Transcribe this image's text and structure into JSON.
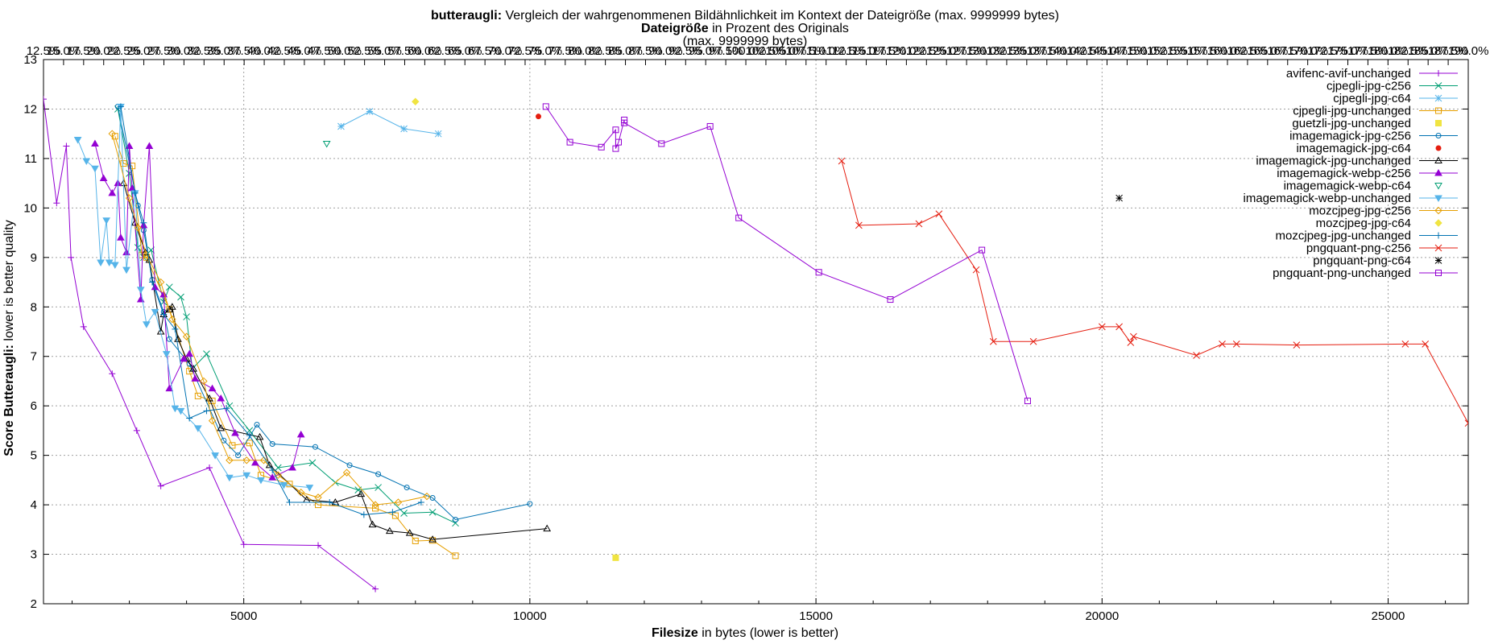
{
  "chart_data": {
    "type": "line",
    "title_bold": "butteraugli:",
    "title_rest": " Vergleich der wahrgenommenen Bildähnlichkeit im Kontext der Dateigröße (max. 9999999 bytes)",
    "subtitle_bold": "Dateigröße",
    "subtitle_rest": " in Prozent des Originals",
    "top_note": "(max. 9999999 bytes)",
    "xlabel_bold": "Filesize",
    "xlabel_rest": " in bytes (lower is better)",
    "ylabel_bold": "Score Butteraugli:",
    "ylabel_rest": " lower is better quality",
    "xlim": [
      1500,
      26400
    ],
    "ylim": [
      2,
      13
    ],
    "x_ticks": [
      "5000",
      "10000",
      "15000",
      "20000",
      "25000"
    ],
    "y_ticks": [
      "2",
      "3",
      "4",
      "5",
      "6",
      "7",
      "8",
      "9",
      "10",
      "11",
      "12",
      "13"
    ],
    "x2_ticks": [
      "12.5%",
      "15.0%",
      "17.5%",
      "20.0%",
      "22.5%",
      "25.0%",
      "27.5%",
      "30.0%",
      "32.5%",
      "35.0%",
      "37.5%",
      "40.0%",
      "42.5%",
      "45.0%",
      "47.5%",
      "50.0%",
      "52.5%",
      "55.0%",
      "57.5%",
      "60.0%",
      "62.5%",
      "65.0%",
      "67.5%",
      "70.0%",
      "72.5%",
      "75.0%",
      "77.5%",
      "80.0%",
      "82.5%",
      "85.0%",
      "87.5%",
      "90.0%",
      "92.5%",
      "95.0%",
      "97.5%",
      "100.0%",
      "102.5%",
      "105.0%",
      "107.5%",
      "110.0%",
      "112.5%",
      "115.0%",
      "117.5%",
      "120.0%",
      "122.5%",
      "125.0%",
      "127.5%",
      "130.0%",
      "132.5%",
      "135.0%",
      "137.5%",
      "140.0%",
      "142.5%",
      "145.0%",
      "147.5%",
      "150.0%",
      "152.5%",
      "155.0%",
      "157.5%",
      "160.0%",
      "162.5%",
      "165.0%",
      "167.5%",
      "170.0%",
      "172.5%",
      "175.0%",
      "177.5%",
      "180.0%",
      "182.5%",
      "185.0%",
      "187.5%",
      "190.0%"
    ],
    "grid": true,
    "legend_position": "top-right",
    "series": [
      {
        "name": "avifenc-avif-unchanged",
        "color": "#9400d3",
        "marker": "plus",
        "lines": true,
        "points": [
          [
            1500,
            12.2
          ],
          [
            1730,
            10.1
          ],
          [
            1900,
            11.25
          ],
          [
            1980,
            9.0
          ],
          [
            2200,
            7.6
          ],
          [
            2700,
            6.65
          ],
          [
            3130,
            5.5
          ],
          [
            3550,
            4.38
          ],
          [
            4400,
            4.75
          ],
          [
            5000,
            3.2
          ],
          [
            6300,
            3.18
          ],
          [
            7300,
            2.3
          ]
        ]
      },
      {
        "name": "cjpegli-jpg-c256",
        "color": "#009e73",
        "marker": "x",
        "lines": true,
        "points": [
          [
            2800,
            12.0
          ],
          [
            3000,
            10.7
          ],
          [
            3150,
            9.2
          ],
          [
            3250,
            9.0
          ],
          [
            3380,
            9.15
          ],
          [
            3600,
            8.1
          ],
          [
            3700,
            8.4
          ],
          [
            3900,
            8.2
          ],
          [
            4000,
            7.8
          ],
          [
            4100,
            6.75
          ],
          [
            4350,
            7.05
          ],
          [
            4750,
            6.0
          ],
          [
            5100,
            5.5
          ],
          [
            5600,
            4.75
          ],
          [
            6200,
            4.85
          ],
          [
            6600,
            4.45
          ],
          [
            7000,
            4.3
          ],
          [
            7350,
            4.35
          ],
          [
            7800,
            3.83
          ],
          [
            8300,
            3.85
          ],
          [
            8700,
            3.63
          ]
        ]
      },
      {
        "name": "cjpegli-jpg-c64",
        "color": "#56b4e9",
        "marker": "star",
        "lines": true,
        "points": [
          [
            6700,
            11.65
          ],
          [
            7200,
            11.95
          ],
          [
            7800,
            11.6
          ],
          [
            8400,
            11.5
          ]
        ]
      },
      {
        "name": "cjpegli-jpg-unchanged",
        "color": "#e69f00",
        "marker": "square",
        "lines": true,
        "points": [
          [
            2750,
            11.45
          ],
          [
            2900,
            10.9
          ],
          [
            3050,
            10.85
          ],
          [
            3220,
            9.05
          ],
          [
            3300,
            9.0
          ],
          [
            3700,
            7.95
          ],
          [
            4050,
            6.7
          ],
          [
            4200,
            6.2
          ],
          [
            4450,
            6.1
          ],
          [
            4800,
            5.2
          ],
          [
            5100,
            5.25
          ],
          [
            5300,
            4.6
          ],
          [
            5800,
            4.42
          ],
          [
            6300,
            4.0
          ],
          [
            7300,
            3.93
          ],
          [
            7650,
            3.78
          ],
          [
            8000,
            3.27
          ],
          [
            8300,
            3.28
          ],
          [
            8700,
            2.97
          ]
        ]
      },
      {
        "name": "guetzli-jpg-unchanged",
        "color": "#f0e442",
        "marker": "filled-square",
        "lines": false,
        "points": [
          [
            11500,
            2.93
          ]
        ]
      },
      {
        "name": "imagemagick-jpg-c256",
        "color": "#0072b2",
        "marker": "circle",
        "lines": true,
        "points": [
          [
            2800,
            12.05
          ],
          [
            3150,
            10.05
          ],
          [
            3250,
            9.55
          ],
          [
            3400,
            8.55
          ],
          [
            3600,
            7.9
          ],
          [
            3700,
            7.35
          ],
          [
            4050,
            6.85
          ],
          [
            4650,
            5.3
          ],
          [
            4900,
            5.0
          ],
          [
            5230,
            5.62
          ],
          [
            5500,
            5.23
          ],
          [
            6250,
            5.17
          ],
          [
            6850,
            4.8
          ],
          [
            7350,
            4.62
          ],
          [
            7850,
            4.35
          ],
          [
            8300,
            4.14
          ],
          [
            8700,
            3.7
          ],
          [
            10000,
            4.02
          ]
        ]
      },
      {
        "name": "imagemagick-jpg-c64",
        "color": "#e51e10",
        "marker": "filled-circle",
        "lines": false,
        "points": [
          [
            10150,
            11.85
          ]
        ]
      },
      {
        "name": "imagemagick-jpg-unchanged",
        "color": "#000000",
        "marker": "triangle",
        "lines": true,
        "points": [
          [
            2900,
            10.5
          ],
          [
            3100,
            9.7
          ],
          [
            3280,
            9.1
          ],
          [
            3350,
            8.95
          ],
          [
            3550,
            7.5
          ],
          [
            3600,
            7.85
          ],
          [
            3700,
            7.95
          ],
          [
            3750,
            8.0
          ],
          [
            3850,
            7.35
          ],
          [
            4000,
            6.95
          ],
          [
            4120,
            6.75
          ],
          [
            4400,
            6.15
          ],
          [
            4600,
            5.55
          ],
          [
            5280,
            5.37
          ],
          [
            5450,
            4.8
          ],
          [
            6100,
            4.1
          ],
          [
            6600,
            4.05
          ],
          [
            7050,
            4.22
          ],
          [
            7250,
            3.6
          ],
          [
            7550,
            3.47
          ],
          [
            7900,
            3.43
          ],
          [
            8300,
            3.3
          ],
          [
            10300,
            3.52
          ]
        ]
      },
      {
        "name": "imagemagick-webp-c256",
        "color": "#9400d3",
        "marker": "filled-triangle",
        "lines": true,
        "points": [
          [
            2400,
            11.3
          ],
          [
            2550,
            10.6
          ],
          [
            2700,
            10.3
          ],
          [
            2800,
            10.5
          ],
          [
            2850,
            9.4
          ],
          [
            2950,
            9.1
          ],
          [
            3000,
            11.25
          ],
          [
            3050,
            10.4
          ],
          [
            3200,
            8.15
          ],
          [
            3250,
            9.65
          ],
          [
            3350,
            11.25
          ],
          [
            3450,
            8.4
          ],
          [
            3600,
            8.25
          ],
          [
            3700,
            6.35
          ],
          [
            3950,
            6.95
          ],
          [
            4050,
            7.05
          ],
          [
            4150,
            6.55
          ],
          [
            4450,
            6.35
          ],
          [
            4600,
            6.15
          ],
          [
            4850,
            5.45
          ],
          [
            5200,
            4.85
          ],
          [
            5500,
            4.55
          ],
          [
            5850,
            4.75
          ],
          [
            6000,
            5.42
          ]
        ]
      },
      {
        "name": "imagemagick-webp-c64",
        "color": "#009e73",
        "marker": "triangle-down",
        "lines": false,
        "points": [
          [
            6450,
            11.3
          ]
        ]
      },
      {
        "name": "imagemagick-webp-unchanged",
        "color": "#56b4e9",
        "marker": "filled-triangle-down",
        "lines": true,
        "points": [
          [
            2100,
            11.38
          ],
          [
            2250,
            10.95
          ],
          [
            2400,
            10.8
          ],
          [
            2500,
            8.9
          ],
          [
            2600,
            9.75
          ],
          [
            2650,
            8.9
          ],
          [
            2750,
            8.85
          ],
          [
            2850,
            12.05
          ],
          [
            2950,
            8.75
          ],
          [
            3100,
            10.3
          ],
          [
            3200,
            8.35
          ],
          [
            3300,
            7.65
          ],
          [
            3450,
            7.9
          ],
          [
            3650,
            7.05
          ],
          [
            3800,
            5.95
          ],
          [
            3900,
            5.9
          ],
          [
            4200,
            5.55
          ],
          [
            4500,
            5.0
          ],
          [
            4750,
            4.55
          ],
          [
            5050,
            4.6
          ],
          [
            5300,
            4.5
          ],
          [
            5700,
            4.4
          ],
          [
            6150,
            4.35
          ]
        ]
      },
      {
        "name": "mozcjpeg-jpg-c256",
        "color": "#e69f00",
        "marker": "diamond",
        "lines": true,
        "points": [
          [
            2700,
            11.5
          ],
          [
            3000,
            10.2
          ],
          [
            3150,
            9.6
          ],
          [
            3300,
            9.05
          ],
          [
            3550,
            8.5
          ],
          [
            3750,
            7.75
          ],
          [
            4000,
            7.4
          ],
          [
            4300,
            6.5
          ],
          [
            4450,
            5.7
          ],
          [
            4750,
            4.9
          ],
          [
            5050,
            4.9
          ],
          [
            5350,
            4.9
          ],
          [
            5600,
            4.6
          ],
          [
            6000,
            4.25
          ],
          [
            6300,
            4.15
          ],
          [
            6800,
            4.65
          ],
          [
            7300,
            4.0
          ],
          [
            7700,
            4.05
          ],
          [
            8200,
            4.17
          ]
        ]
      },
      {
        "name": "mozcjpeg-jpg-c64",
        "color": "#f0e442",
        "marker": "filled-diamond",
        "lines": false,
        "points": [
          [
            8000,
            12.15
          ]
        ]
      },
      {
        "name": "mozcjpeg-jpg-unchanged",
        "color": "#0072b2",
        "marker": "plus",
        "lines": true,
        "points": [
          [
            2850,
            12.05
          ],
          [
            3100,
            10.3
          ],
          [
            3250,
            9.7
          ],
          [
            3400,
            8.5
          ],
          [
            3600,
            7.85
          ],
          [
            3800,
            7.55
          ],
          [
            4050,
            5.75
          ],
          [
            4350,
            5.9
          ],
          [
            4700,
            5.95
          ],
          [
            5100,
            5.4
          ],
          [
            5500,
            4.7
          ],
          [
            5800,
            4.05
          ],
          [
            6500,
            4.05
          ],
          [
            7100,
            3.8
          ],
          [
            7600,
            3.85
          ],
          [
            8100,
            4.05
          ]
        ]
      },
      {
        "name": "pngquant-png-c256",
        "color": "#e51e10",
        "marker": "x",
        "lines": true,
        "points": [
          [
            15450,
            10.95
          ],
          [
            15750,
            9.65
          ],
          [
            16800,
            9.68
          ],
          [
            17150,
            9.88
          ],
          [
            17800,
            8.75
          ],
          [
            18100,
            7.3
          ],
          [
            18800,
            7.3
          ],
          [
            20000,
            7.6
          ],
          [
            20300,
            7.6
          ],
          [
            20500,
            7.28
          ],
          [
            20550,
            7.4
          ],
          [
            21650,
            7.02
          ],
          [
            22100,
            7.25
          ],
          [
            22350,
            7.25
          ],
          [
            23400,
            7.23
          ],
          [
            25300,
            7.25
          ],
          [
            25650,
            7.25
          ],
          [
            26400,
            5.65
          ]
        ]
      },
      {
        "name": "pngquant-png-c64",
        "color": "#000000",
        "marker": "star",
        "lines": false,
        "points": [
          [
            20300,
            10.2
          ]
        ]
      },
      {
        "name": "pngquant-png-unchanged",
        "color": "#9400d3",
        "marker": "square",
        "lines": true,
        "points": [
          [
            10280,
            12.05
          ],
          [
            10700,
            11.33
          ],
          [
            11250,
            11.23
          ],
          [
            11500,
            11.58
          ],
          [
            11500,
            11.2
          ],
          [
            11550,
            11.33
          ],
          [
            11650,
            11.78
          ],
          [
            11650,
            11.72
          ],
          [
            12300,
            11.3
          ],
          [
            13150,
            11.65
          ],
          [
            13650,
            9.8
          ],
          [
            15050,
            8.7
          ],
          [
            16300,
            8.15
          ],
          [
            17900,
            9.15
          ],
          [
            18700,
            6.1
          ]
        ]
      }
    ]
  }
}
